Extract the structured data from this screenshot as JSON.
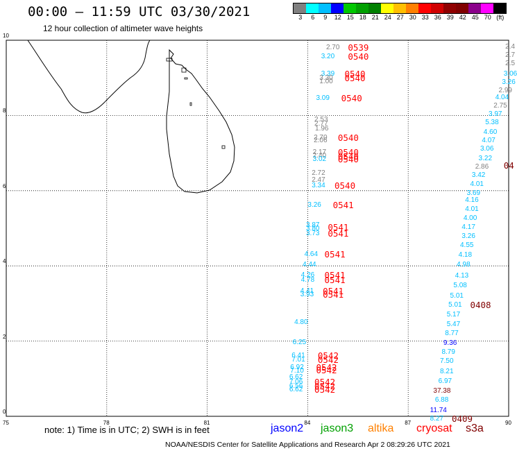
{
  "title": "00:00 – 11:59 UTC 03/30/2021",
  "subtitle": "12 hour collection of altimeter wave heights",
  "legend": {
    "colors": [
      "#808080",
      "#00ffff",
      "#00bfff",
      "#0000ff",
      "#00c800",
      "#00a000",
      "#008000",
      "#ffff00",
      "#ffbf00",
      "#ff8000",
      "#ff0000",
      "#d00000",
      "#900000",
      "#800000",
      "#8b008b",
      "#ff00ff",
      "#000000"
    ],
    "labels": [
      "3",
      "6",
      "9",
      "12",
      "15",
      "18",
      "21",
      "24",
      "27",
      "30",
      "33",
      "36",
      "39",
      "42",
      "45",
      "70",
      "(ft)"
    ]
  },
  "axes": {
    "x_ticks": [
      "75",
      "78",
      "81",
      "84",
      "87",
      "90"
    ],
    "y_ticks": [
      "0",
      "2",
      "4",
      "6",
      "8",
      "10"
    ]
  },
  "map_data": {
    "lon_range": [
      75,
      90
    ],
    "lat_range": [
      0,
      10
    ],
    "landmass": "Sri Lanka",
    "track_colors": {
      "jason2": "#0000ff",
      "jason3": "#00a000",
      "altika": "#ff8000",
      "cryosat": "#ff0000",
      "s3a": "#800000",
      "other": "#808080",
      "cyan": "#00bfff"
    },
    "wave_heights": [
      {
        "v": "2.70",
        "lon": 84.55,
        "lat": 9.8,
        "c": "other"
      },
      {
        "v": "3.20",
        "lon": 84.4,
        "lat": 9.55,
        "c": "cyan"
      },
      {
        "v": "3.39",
        "lon": 84.4,
        "lat": 9.1,
        "c": "cyan"
      },
      {
        "v": "3.30",
        "lon": 84.35,
        "lat": 8.98,
        "c": "other"
      },
      {
        "v": "1.00",
        "lon": 84.35,
        "lat": 8.9,
        "c": "other"
      },
      {
        "v": "3.09",
        "lon": 84.25,
        "lat": 8.45,
        "c": "cyan"
      },
      {
        "v": "2.53",
        "lon": 84.2,
        "lat": 7.88,
        "c": "other"
      },
      {
        "v": "2.77",
        "lon": 84.2,
        "lat": 7.76,
        "c": "other"
      },
      {
        "v": "1.96",
        "lon": 84.22,
        "lat": 7.64,
        "c": "other"
      },
      {
        "v": "2.70",
        "lon": 84.18,
        "lat": 7.4,
        "c": "other"
      },
      {
        "v": "2.06",
        "lon": 84.18,
        "lat": 7.32,
        "c": "other"
      },
      {
        "v": "2.17",
        "lon": 84.15,
        "lat": 7.02,
        "c": "other"
      },
      {
        "v": "2.40",
        "lon": 84.15,
        "lat": 6.92,
        "c": "other"
      },
      {
        "v": "3.02",
        "lon": 84.15,
        "lat": 6.82,
        "c": "cyan"
      },
      {
        "v": "2.72",
        "lon": 84.12,
        "lat": 6.45,
        "c": "other"
      },
      {
        "v": "2.47",
        "lon": 84.12,
        "lat": 6.28,
        "c": "other"
      },
      {
        "v": "3.34",
        "lon": 84.12,
        "lat": 6.12,
        "c": "cyan"
      },
      {
        "v": "3.26",
        "lon": 84.0,
        "lat": 5.6,
        "c": "cyan"
      },
      {
        "v": "3.87",
        "lon": 83.95,
        "lat": 5.08,
        "c": "cyan"
      },
      {
        "v": "3.80",
        "lon": 83.95,
        "lat": 4.98,
        "c": "cyan"
      },
      {
        "v": "3.73",
        "lon": 83.95,
        "lat": 4.86,
        "c": "cyan"
      },
      {
        "v": "4.64",
        "lon": 83.9,
        "lat": 4.3,
        "c": "cyan"
      },
      {
        "v": "4.44",
        "lon": 83.85,
        "lat": 4.02,
        "c": "cyan"
      },
      {
        "v": "4.26",
        "lon": 83.8,
        "lat": 3.74,
        "c": "cyan"
      },
      {
        "v": "4.78",
        "lon": 83.8,
        "lat": 3.62,
        "c": "cyan"
      },
      {
        "v": "4.41",
        "lon": 83.78,
        "lat": 3.32,
        "c": "cyan"
      },
      {
        "v": "3.93",
        "lon": 83.78,
        "lat": 3.22,
        "c": "cyan"
      },
      {
        "v": "4.80",
        "lon": 83.6,
        "lat": 2.5,
        "c": "cyan"
      },
      {
        "v": "6.25",
        "lon": 83.55,
        "lat": 1.95,
        "c": "cyan"
      },
      {
        "v": "6.41",
        "lon": 83.52,
        "lat": 1.6,
        "c": "cyan"
      },
      {
        "v": "7.01",
        "lon": 83.52,
        "lat": 1.5,
        "c": "cyan"
      },
      {
        "v": "6.92",
        "lon": 83.48,
        "lat": 1.3,
        "c": "cyan"
      },
      {
        "v": "7.10",
        "lon": 83.48,
        "lat": 1.2,
        "c": "cyan"
      },
      {
        "v": "6.62",
        "lon": 83.45,
        "lat": 1.03,
        "c": "cyan"
      },
      {
        "v": "7.06",
        "lon": 83.45,
        "lat": 0.9,
        "c": "cyan"
      },
      {
        "v": "6.56",
        "lon": 83.45,
        "lat": 0.8,
        "c": "cyan"
      },
      {
        "v": "6.62",
        "lon": 83.45,
        "lat": 0.7,
        "c": "cyan"
      },
      {
        "v": "2.4",
        "lon": 89.9,
        "lat": 9.82,
        "c": "other"
      },
      {
        "v": "2.7",
        "lon": 89.9,
        "lat": 9.6,
        "c": "other"
      },
      {
        "v": "2.5",
        "lon": 89.9,
        "lat": 9.38,
        "c": "other"
      },
      {
        "v": "3.06",
        "lon": 89.85,
        "lat": 9.1,
        "c": "cyan"
      },
      {
        "v": "3.26",
        "lon": 89.8,
        "lat": 8.88,
        "c": "cyan"
      },
      {
        "v": "2.99",
        "lon": 89.7,
        "lat": 8.66,
        "c": "other"
      },
      {
        "v": "4.04",
        "lon": 89.6,
        "lat": 8.46,
        "c": "cyan"
      },
      {
        "v": "2.75",
        "lon": 89.55,
        "lat": 8.25,
        "c": "other"
      },
      {
        "v": "3.97",
        "lon": 89.4,
        "lat": 8.02,
        "c": "cyan"
      },
      {
        "v": "5.38",
        "lon": 89.3,
        "lat": 7.8,
        "c": "cyan"
      },
      {
        "v": "4.60",
        "lon": 89.25,
        "lat": 7.55,
        "c": "cyan"
      },
      {
        "v": "4.07",
        "lon": 89.2,
        "lat": 7.32,
        "c": "cyan"
      },
      {
        "v": "3.06",
        "lon": 89.15,
        "lat": 7.1,
        "c": "cyan"
      },
      {
        "v": "3.22",
        "lon": 89.1,
        "lat": 6.85,
        "c": "cyan"
      },
      {
        "v": "2.86",
        "lon": 89.0,
        "lat": 6.63,
        "c": "other"
      },
      {
        "v": "3.42",
        "lon": 88.9,
        "lat": 6.4,
        "c": "cyan"
      },
      {
        "v": "4.01",
        "lon": 88.85,
        "lat": 6.16,
        "c": "cyan"
      },
      {
        "v": "3.69",
        "lon": 88.75,
        "lat": 5.93,
        "c": "cyan"
      },
      {
        "v": "4.16",
        "lon": 88.7,
        "lat": 5.73,
        "c": "cyan"
      },
      {
        "v": "4.01",
        "lon": 88.7,
        "lat": 5.5,
        "c": "cyan"
      },
      {
        "v": "4.00",
        "lon": 88.65,
        "lat": 5.25,
        "c": "cyan"
      },
      {
        "v": "4.17",
        "lon": 88.6,
        "lat": 5.02,
        "c": "cyan"
      },
      {
        "v": "3.26",
        "lon": 88.6,
        "lat": 4.78,
        "c": "cyan"
      },
      {
        "v": "4.55",
        "lon": 88.55,
        "lat": 4.53,
        "c": "cyan"
      },
      {
        "v": "4.18",
        "lon": 88.5,
        "lat": 4.28,
        "c": "cyan"
      },
      {
        "v": "4.98",
        "lon": 88.45,
        "lat": 4.02,
        "c": "cyan"
      },
      {
        "v": "4.13",
        "lon": 88.4,
        "lat": 3.73,
        "c": "cyan"
      },
      {
        "v": "5.08",
        "lon": 88.35,
        "lat": 3.47,
        "c": "cyan"
      },
      {
        "v": "5.01",
        "lon": 88.25,
        "lat": 3.2,
        "c": "cyan"
      },
      {
        "v": "5.01",
        "lon": 88.2,
        "lat": 2.95,
        "c": "cyan"
      },
      {
        "v": "5.17",
        "lon": 88.15,
        "lat": 2.7,
        "c": "cyan"
      },
      {
        "v": "5.47",
        "lon": 88.15,
        "lat": 2.43,
        "c": "cyan"
      },
      {
        "v": "8.77",
        "lon": 88.1,
        "lat": 2.2,
        "c": "cyan"
      },
      {
        "v": "9.36",
        "lon": 88.05,
        "lat": 1.93,
        "c": "jason2"
      },
      {
        "v": "8.79",
        "lon": 88.0,
        "lat": 1.7,
        "c": "cyan"
      },
      {
        "v": "7.50",
        "lon": 87.95,
        "lat": 1.45,
        "c": "cyan"
      },
      {
        "v": "8.21",
        "lon": 87.95,
        "lat": 1.18,
        "c": "cyan"
      },
      {
        "v": "6.97",
        "lon": 87.9,
        "lat": 0.93,
        "c": "cyan"
      },
      {
        "v": "37.38",
        "lon": 87.75,
        "lat": 0.67,
        "c": "s3a"
      },
      {
        "v": "6.88",
        "lon": 87.8,
        "lat": 0.42,
        "c": "cyan"
      },
      {
        "v": "11.74",
        "lon": 87.65,
        "lat": 0.15,
        "c": "jason2"
      },
      {
        "v": "8.27",
        "lon": 87.65,
        "lat": -0.07,
        "c": "cyan"
      }
    ],
    "time_labels": [
      {
        "v": "0539",
        "lon": 85.2,
        "lat": 9.8,
        "c": "cryosat"
      },
      {
        "v": "0540",
        "lon": 85.2,
        "lat": 9.55,
        "c": "cryosat"
      },
      {
        "v": "0540",
        "lon": 85.1,
        "lat": 9.1,
        "c": "cryosat"
      },
      {
        "v": "0540",
        "lon": 85.1,
        "lat": 8.98,
        "c": "cryosat"
      },
      {
        "v": "0540",
        "lon": 85.0,
        "lat": 8.45,
        "c": "cryosat"
      },
      {
        "v": "0540",
        "lon": 84.9,
        "lat": 7.4,
        "c": "cryosat"
      },
      {
        "v": "0540",
        "lon": 84.9,
        "lat": 7.02,
        "c": "cryosat"
      },
      {
        "v": "0540",
        "lon": 84.9,
        "lat": 6.9,
        "c": "cryosat"
      },
      {
        "v": "0540",
        "lon": 84.9,
        "lat": 6.82,
        "c": "cryosat"
      },
      {
        "v": "0540",
        "lon": 84.8,
        "lat": 6.12,
        "c": "cryosat"
      },
      {
        "v": "0541",
        "lon": 84.75,
        "lat": 5.6,
        "c": "cryosat"
      },
      {
        "v": "0541",
        "lon": 84.6,
        "lat": 5.02,
        "c": "cryosat"
      },
      {
        "v": "0541",
        "lon": 84.6,
        "lat": 4.86,
        "c": "cryosat"
      },
      {
        "v": "0541",
        "lon": 84.5,
        "lat": 4.3,
        "c": "cryosat"
      },
      {
        "v": "0541",
        "lon": 84.5,
        "lat": 3.74,
        "c": "cryosat"
      },
      {
        "v": "0541",
        "lon": 84.5,
        "lat": 3.62,
        "c": "cryosat"
      },
      {
        "v": "0541",
        "lon": 84.45,
        "lat": 3.32,
        "c": "cryosat"
      },
      {
        "v": "0541",
        "lon": 84.45,
        "lat": 3.22,
        "c": "cryosat"
      },
      {
        "v": "0542",
        "lon": 84.3,
        "lat": 1.6,
        "c": "cryosat"
      },
      {
        "v": "0542",
        "lon": 84.3,
        "lat": 1.5,
        "c": "cryosat"
      },
      {
        "v": "0542",
        "lon": 84.25,
        "lat": 1.3,
        "c": "cryosat"
      },
      {
        "v": "0542",
        "lon": 84.25,
        "lat": 1.22,
        "c": "cryosat"
      },
      {
        "v": "0542",
        "lon": 84.2,
        "lat": 0.9,
        "c": "cryosat"
      },
      {
        "v": "0542",
        "lon": 84.2,
        "lat": 0.8,
        "c": "cryosat"
      },
      {
        "v": "0542",
        "lon": 84.2,
        "lat": 0.7,
        "c": "cryosat"
      },
      {
        "v": "04",
        "lon": 89.85,
        "lat": 6.66,
        "c": "s3a"
      },
      {
        "v": "0408",
        "lon": 88.85,
        "lat": 2.95,
        "c": "s3a"
      },
      {
        "v": "0409",
        "lon": 88.3,
        "lat": -0.07,
        "c": "s3a"
      }
    ]
  },
  "note": "note: 1) Time is in UTC; 2) SWH is in feet",
  "satellites": [
    {
      "name": "jason2",
      "color": "#0000ff"
    },
    {
      "name": "jason3",
      "color": "#00a000"
    },
    {
      "name": "altika",
      "color": "#ff8000"
    },
    {
      "name": "cryosat",
      "color": "#ff0000"
    },
    {
      "name": "s3a",
      "color": "#800000"
    }
  ],
  "footer": "NOAA/NESDIS Center for Satellite Applications and Research   Apr  2 08:29:26 UTC 2021"
}
